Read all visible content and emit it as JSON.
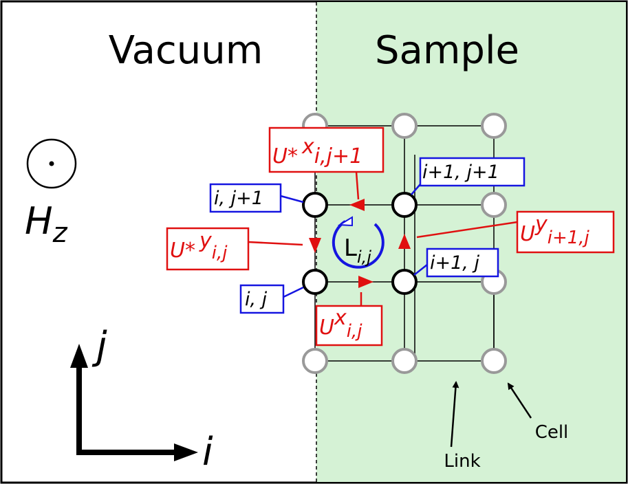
{
  "regions": [
    "Vacuum",
    "Sample"
  ],
  "field": {
    "symbol": "H",
    "sub": "z"
  },
  "axes": {
    "y": "j",
    "x": "i"
  },
  "node_labels": [
    "i, j+1",
    "i+1, j+1",
    "i+1, j",
    "i, j"
  ],
  "links": [
    {
      "base": "U*",
      "sup": "x",
      "sub": "i,j+1"
    },
    {
      "base": "U*",
      "sup": "y",
      "sub": "i,j"
    },
    {
      "base": "U",
      "sup": "y",
      "sub": "i+1,j"
    },
    {
      "base": "U",
      "sup": "x",
      "sub": "i,j"
    }
  ],
  "loop": {
    "base": "L",
    "sub": "i,j"
  },
  "callouts": [
    "Link",
    "Cell"
  ]
}
